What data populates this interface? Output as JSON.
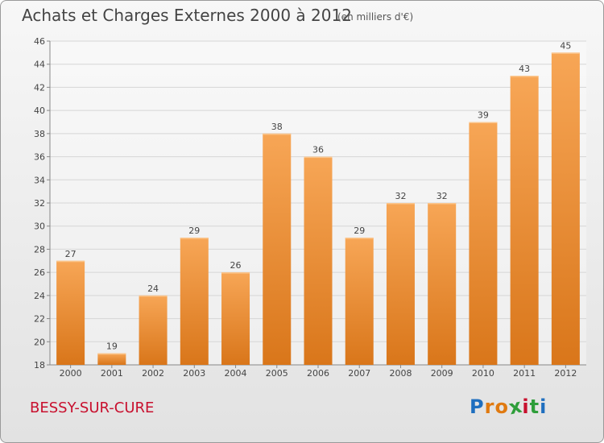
{
  "header": {
    "title": "Achats et Charges Externes 2000 à 2012",
    "unit": "(en milliers d'€)"
  },
  "footer": {
    "location": "BESSY-SUR-CURE",
    "logo_text": "Proxiti",
    "logo_letters": [
      {
        "char": "P",
        "color": "#1f6fbf"
      },
      {
        "char": "r",
        "color": "#e07a10"
      },
      {
        "char": "o",
        "color": "#e07a10"
      },
      {
        "char": "x",
        "color": "#2e9e3a"
      },
      {
        "char": "i",
        "color": "#c8102e"
      },
      {
        "char": "t",
        "color": "#2e9e3a"
      },
      {
        "char": "i",
        "color": "#1f6fbf"
      }
    ]
  },
  "chart_data": {
    "type": "bar",
    "title": "Achats et Charges Externes 2000 à 2012",
    "xlabel": "",
    "ylabel": "",
    "categories": [
      "2000",
      "2001",
      "2002",
      "2003",
      "2004",
      "2005",
      "2006",
      "2007",
      "2008",
      "2009",
      "2010",
      "2011",
      "2012"
    ],
    "values": [
      27,
      19,
      24,
      29,
      26,
      38,
      36,
      29,
      32,
      32,
      39,
      43,
      45
    ],
    "ylim": [
      18,
      46
    ],
    "yticks": [
      18,
      20,
      22,
      24,
      26,
      28,
      30,
      32,
      34,
      36,
      38,
      40,
      42,
      44,
      46
    ],
    "grid": true,
    "data_labels": true,
    "bar_color": "#f0922e",
    "bar_color_top": "#f7a656",
    "bar_color_bottom": "#d9761a"
  }
}
